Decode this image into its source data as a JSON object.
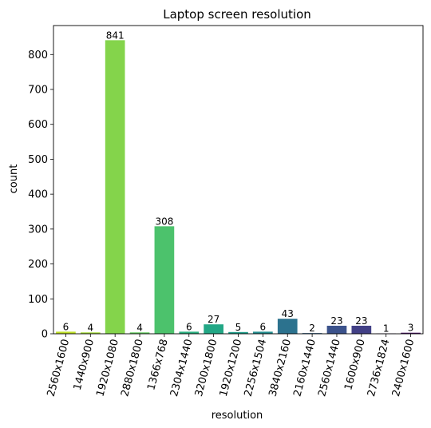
{
  "chart_data": {
    "type": "bar",
    "title": "Laptop screen resolution",
    "xlabel": "resolution",
    "ylabel": "count",
    "categories": [
      "2560x1600",
      "1440x900",
      "1920x1080",
      "2880x1800",
      "1366x768",
      "2304x1440",
      "3200x1800",
      "1920x1200",
      "2256x1504",
      "3840x2160",
      "2160x1440",
      "2560x1440",
      "1600x900",
      "2736x1824",
      "2400x1600"
    ],
    "values": [
      6,
      4,
      841,
      4,
      308,
      6,
      27,
      5,
      6,
      43,
      2,
      23,
      23,
      1,
      3
    ],
    "colors": [
      "#bddf26",
      "#a2da37",
      "#84d44b",
      "#62cb5f",
      "#4cc26c",
      "#29af7f",
      "#22a785",
      "#1e9c89",
      "#228c8d",
      "#2c728e",
      "#33638d",
      "#3b528b",
      "#424086",
      "#482576",
      "#471063"
    ],
    "ylim": [
      0,
      883
    ],
    "yticks": [
      0,
      100,
      200,
      300,
      400,
      500,
      600,
      700,
      800
    ],
    "grid": false,
    "x_tick_rotation_deg": 75
  }
}
